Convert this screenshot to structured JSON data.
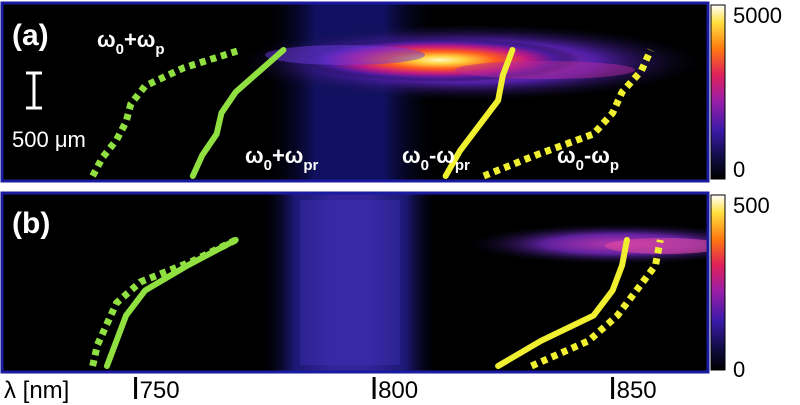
{
  "chart_data": [
    {
      "panel": "(a)",
      "type": "heatmap",
      "colormap": "black-purple-red-yellow-white",
      "colorbar": {
        "min": 0,
        "max": 5000,
        "tick_labels": [
          "5000",
          "0"
        ]
      },
      "annotations": {
        "pump_sum_base": "ω",
        "pump_sum_sub": "0",
        "pump_sum_op": "+",
        "pump_sum_sub2": "p",
        "probe_sum_base": "ω",
        "probe_sum_sub": "0",
        "probe_sum_op": "+",
        "probe_sum_sub2": "pr",
        "probe_diff_base": "ω",
        "probe_diff_sub": "0",
        "probe_diff_op": "-",
        "probe_diff_sub2": "pr",
        "pump_diff_base": "ω",
        "pump_diff_sub": "0",
        "pump_diff_op": "-",
        "pump_diff_sub2": "p",
        "scalebar": "500 μm"
      },
      "curves": [
        {
          "kind": "dotted",
          "color": "#8fe040",
          "wavelength_nm": [
            741,
            743,
            746,
            748,
            749,
            752,
            760,
            772
          ]
        },
        {
          "kind": "solid",
          "color": "#8fe040",
          "wavelength_nm": [
            762,
            764,
            767,
            768,
            771,
            776,
            781
          ]
        },
        {
          "kind": "solid",
          "color": "#f0f030",
          "wavelength_nm": [
            815,
            818,
            822,
            826,
            827,
            829
          ]
        },
        {
          "kind": "dotted",
          "color": "#f0f030",
          "wavelength_nm": [
            823,
            834,
            846,
            850,
            852,
            856,
            858
          ]
        }
      ]
    },
    {
      "panel": "(b)",
      "type": "heatmap",
      "colormap": "black-purple-red-yellow-white",
      "colorbar": {
        "min": 0,
        "max": 500,
        "tick_labels": [
          "500",
          "0"
        ]
      },
      "curves": [
        {
          "kind": "dotted",
          "color": "#8fe040",
          "wavelength_nm": [
            741,
            742,
            744,
            746,
            751,
            762,
            771
          ]
        },
        {
          "kind": "solid",
          "color": "#8fe040",
          "wavelength_nm": [
            744,
            746,
            748,
            752,
            761,
            771
          ]
        },
        {
          "kind": "solid",
          "color": "#f0f030",
          "wavelength_nm": [
            826,
            835,
            846,
            850,
            852,
            853
          ]
        },
        {
          "kind": "dotted",
          "color": "#f0f030",
          "wavelength_nm": [
            833,
            845,
            851,
            855,
            859,
            860
          ]
        }
      ]
    }
  ],
  "x_axis": {
    "label": "λ [nm]",
    "range": [
      722,
      870
    ],
    "ticks": [
      750,
      800,
      850
    ],
    "tick_labels": [
      "750",
      "800",
      "850"
    ]
  }
}
